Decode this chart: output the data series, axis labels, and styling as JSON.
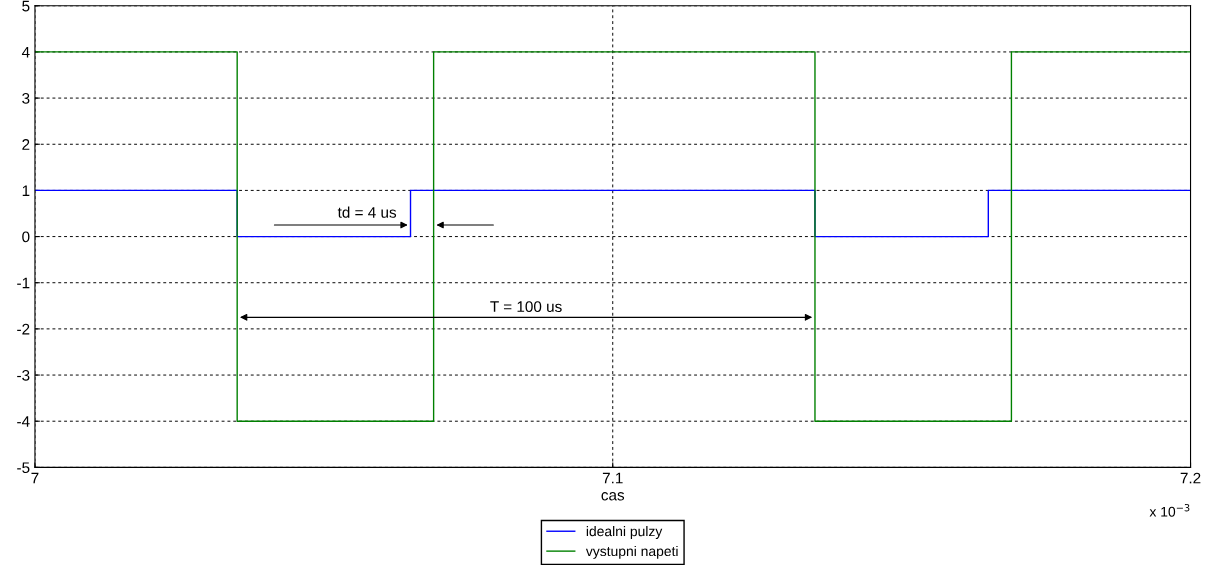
{
  "chart_data": {
    "type": "step",
    "xlabel": "cas",
    "xlim": [
      7.0,
      7.2
    ],
    "xticks": [
      7,
      7.1,
      7.2
    ],
    "ylim": [
      -5,
      5
    ],
    "yticks": [
      -5,
      -4,
      -3,
      -2,
      -1,
      0,
      1,
      2,
      3,
      4,
      5
    ],
    "grid": true,
    "legend": "bottom",
    "marker": "none",
    "line_style": "solid",
    "series": [
      {
        "name": "idealni pulzy",
        "color": "#0000ff",
        "x": [
          7.0,
          7.035,
          7.065,
          7.135,
          7.165,
          7.2
        ],
        "values": [
          1,
          0,
          1,
          0,
          1,
          1
        ]
      },
      {
        "name": "vystupni napeti",
        "color": "#008000",
        "x": [
          7.0,
          7.035,
          7.069,
          7.135,
          7.169,
          7.2
        ],
        "values": [
          4,
          -4,
          4,
          -4,
          4,
          4
        ]
      }
    ],
    "annotations": [
      {
        "text": "td = 4 us",
        "x": 7.065,
        "y": 0.25
      },
      "T = 100 us",
      "x 10$^{−3}$"
    ]
  }
}
